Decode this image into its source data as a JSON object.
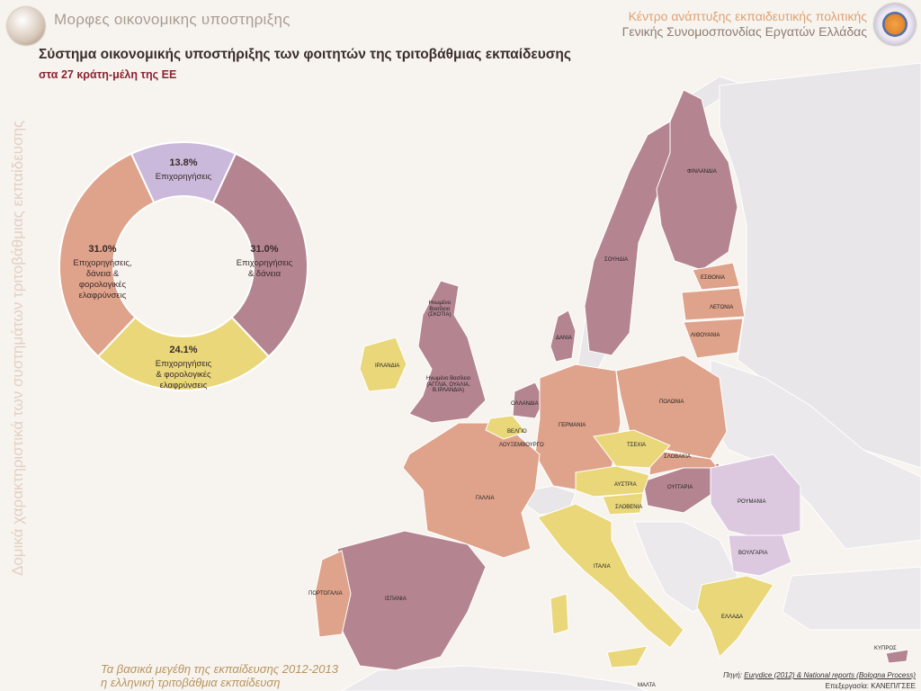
{
  "header": {
    "title": "Μορφες οικονομικης υποστηριξης",
    "org_line1": "Κέντρο ανάπτυξης εκπαιδευτικής πολιτικής",
    "org_line2": "Γενικής Συνομοσπονδίας Εργατών Ελλάδας"
  },
  "sidebar_vertical": "Δομικά χαρακτηριστικά των συστημάτων τριτοβάθμιας εκπαίδευσης",
  "footer": {
    "link1": "Τα βασικά μεγέθη της εκπαίδευσης 2012-2013",
    "link2": "η ελληνική τριτοβάθμια εκπαίδευση",
    "source_label": "Πηγή:",
    "source_text": "Eurydice (2012) & National reports  (Bologna Process)",
    "credit_label": "Επεξεργασία:",
    "credit_text": "ΚΑΝΕΠ/ΓΣΕΕ"
  },
  "chart_data": {
    "type": "pie",
    "title": "Σύστημα οικονομικής υποστήριξης των φοιτητών της τριτοβάθμιας εκπαίδευσης",
    "subtitle": "στα 27 κράτη-μέλη της ΕΕ",
    "donut": true,
    "slices": [
      {
        "pct_label": "13.8%",
        "value": 13.8,
        "label": "Επιχορηγήσεις",
        "color": "#cbb9dc"
      },
      {
        "pct_label": "31.0%",
        "value": 31.0,
        "label": "Επιχορηγήσεις & δάνεια",
        "color": "#b48590"
      },
      {
        "pct_label": "24.1%",
        "value": 24.1,
        "label": "Επιχορηγήσεις & φορολογικές ελαφρύνσεις",
        "color": "#e9d77a"
      },
      {
        "pct_label": "31.0%",
        "value": 31.0,
        "label": "Επιχορηγήσεις, δάνεια & φορολογικές ελαφρύνσεις",
        "color": "#dfa28a"
      }
    ]
  },
  "map": {
    "category_colors": {
      "grants": "#dcc9e0",
      "grants_loans": "#b48590",
      "grants_tax": "#e9d77a",
      "grants_loans_tax": "#dfa28a",
      "non_eu": "#e8e6e8",
      "sea": "#f7f4ef"
    },
    "labels": {
      "finland": "ΦΙΝΛΑΝΔΙΑ",
      "sweden": "ΣΟΥΗΔΙΑ",
      "estonia": "ΕΣΘΟΝΙΑ",
      "latvia": "ΛΕΤΟΝΙΑ",
      "lithuania": "ΛΙΘΟΥΑΝΙΑ",
      "denmark": "ΔΑΝΙΑ",
      "uk_scotland": "Ηνωμένο\nΒασίλειο\n(ΣΚΟΤΙΑ)",
      "uk_main": "Ηνωμένο Βασίλειο\n(ΑΓΓΛΙΑ, ΟΥΑΛΙΑ,\nΒ.ΙΡΛΑΝΔΙΑ)",
      "ireland": "ΙΡΛΑΝΔΙΑ",
      "netherlands": "ΟΛΛΑΝΔΙΑ",
      "belgium": "ΒΕΛΓΙΟ",
      "luxembourg": "ΛΟΥΞΕΜΒΟΥΡΓΟ",
      "germany": "ΓΕΡΜΑΝΙΑ",
      "poland": "ΠΟΛΩΝΙΑ",
      "czechia": "ΤΣΕΧΙΑ",
      "slovakia": "ΣΛΟΒΑΚΙΑ",
      "austria": "ΑΥΣΤΡΙΑ",
      "hungary": "ΟΥΓΓΑΡΙΑ",
      "slovenia": "ΣΛΟΒΕΝΙΑ",
      "romania": "ΡΟΥΜΑΝΙΑ",
      "bulgaria": "ΒΟΥΛΓΑΡΙΑ",
      "france": "ΓΑΛΛΙΑ",
      "italy": "ΙΤΑΛΙΑ",
      "spain": "ΙΣΠΑΝΙΑ",
      "portugal": "ΠΟΡΤΟΓΑΛΙΑ",
      "greece": "ΕΛΛΑΔΑ",
      "cyprus": "ΚΥΠΡΟΣ",
      "malta": "ΜΑΛΤΑ"
    }
  }
}
